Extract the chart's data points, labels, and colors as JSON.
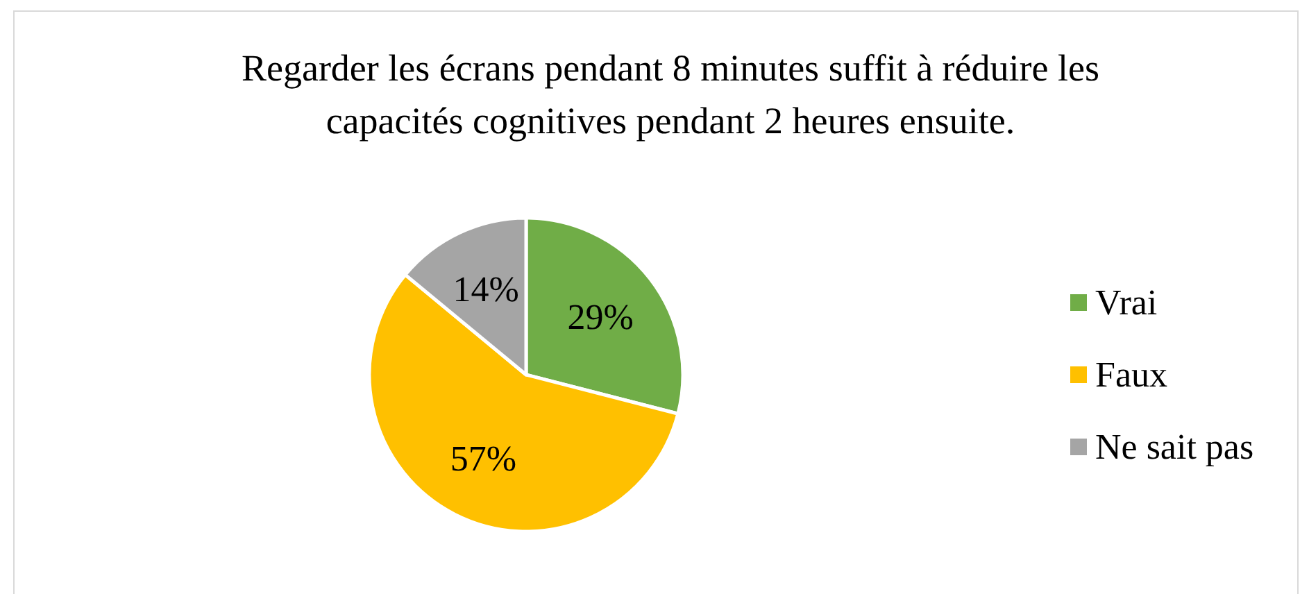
{
  "chart_data": {
    "type": "pie",
    "title": "Regarder les écrans pendant 8 minutes suffit à réduire les capacités cognitives pendant 2 heures ensuite.",
    "categories": [
      "Vrai",
      "Faux",
      "Ne sait pas"
    ],
    "values": [
      29,
      57,
      14
    ],
    "colors": [
      "#70ad47",
      "#ffc000",
      "#a5a5a5"
    ],
    "value_labels": [
      "29%",
      "57%",
      "14%"
    ],
    "legend": "right"
  }
}
